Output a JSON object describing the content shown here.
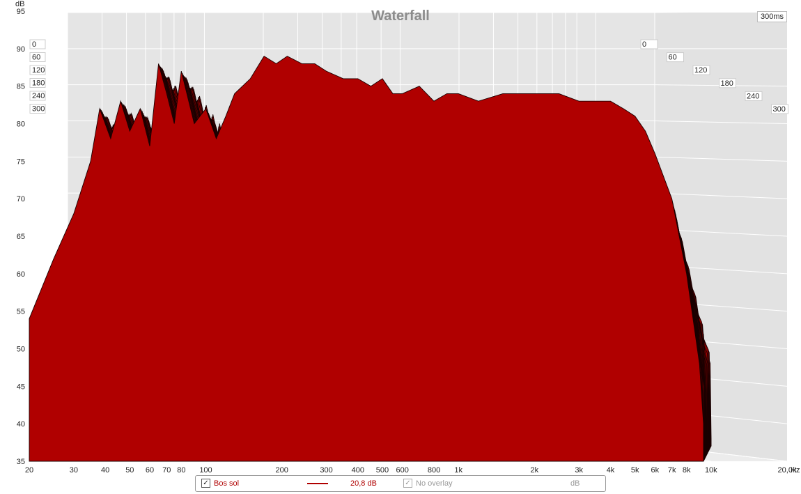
{
  "chart_data": {
    "type": "area",
    "title": "Waterfall",
    "time_label": "300ms",
    "xlabel": "",
    "ylabel": "dB",
    "x_unit": "Hz",
    "x_scale": "log",
    "xlim": [
      20,
      20000
    ],
    "ylim": [
      35,
      95
    ],
    "x_ticks": [
      20,
      30,
      40,
      50,
      60,
      70,
      80,
      100,
      200,
      300,
      400,
      500,
      600,
      800,
      1000,
      2000,
      3000,
      4000,
      5000,
      6000,
      7000,
      8000,
      10000,
      20000
    ],
    "x_tick_labels": [
      "20",
      "30",
      "40",
      "50",
      "60",
      "70",
      "80",
      "100",
      "200",
      "300",
      "400",
      "500",
      "600",
      "800",
      "1k",
      "2k",
      "3k",
      "4k",
      "5k",
      "6k",
      "7k",
      "8k",
      "10k",
      "20,0k"
    ],
    "y_ticks": [
      35,
      40,
      45,
      50,
      55,
      60,
      65,
      70,
      75,
      80,
      85,
      90,
      95
    ],
    "y_tick_labels": [
      "35",
      "40",
      "45",
      "50",
      "55",
      "60",
      "65",
      "70",
      "75",
      "80",
      "85",
      "90",
      "95"
    ],
    "time_ticks_ms": [
      0,
      60,
      120,
      180,
      240,
      300
    ],
    "time_tick_labels": [
      "0",
      "60",
      "120",
      "180",
      "240",
      "300"
    ],
    "series": [
      {
        "name": "Bos sol",
        "slice_ms": 0,
        "x": [
          20,
          25,
          30,
          35,
          38,
          42,
          46,
          50,
          55,
          60,
          65,
          70,
          75,
          80,
          90,
          100,
          110,
          120,
          130,
          150,
          170,
          190,
          210,
          240,
          270,
          300,
          350,
          400,
          450,
          500,
          550,
          600,
          700,
          800,
          900,
          1000,
          1200,
          1500,
          2000,
          2500,
          3000,
          3500,
          4000,
          4500,
          5000,
          5500,
          6000,
          7000,
          8000,
          9000,
          9800
        ],
        "y": [
          54,
          62,
          68,
          75,
          82,
          78,
          83,
          79,
          82,
          77,
          88,
          84,
          80,
          87,
          80,
          82,
          78,
          81,
          84,
          86,
          89,
          88,
          89,
          88,
          88,
          87,
          86,
          86,
          85,
          86,
          84,
          84,
          85,
          83,
          84,
          84,
          83,
          84,
          84,
          84,
          83,
          83,
          83,
          82,
          81,
          79,
          76,
          70,
          60,
          48,
          40
        ]
      }
    ],
    "fill_color": "#b00000",
    "line_color": "#1a0000"
  },
  "legend": {
    "series_name": "Bos sol",
    "series_value": "20,8 dB",
    "overlay_label": "No overlay",
    "overlay_unit": "dB",
    "check_glyph": "✓"
  },
  "colors": {
    "fill": "#b00000",
    "floor_fill": "#b30000",
    "background": "#e5e5e5",
    "grid": "#ffffff"
  }
}
